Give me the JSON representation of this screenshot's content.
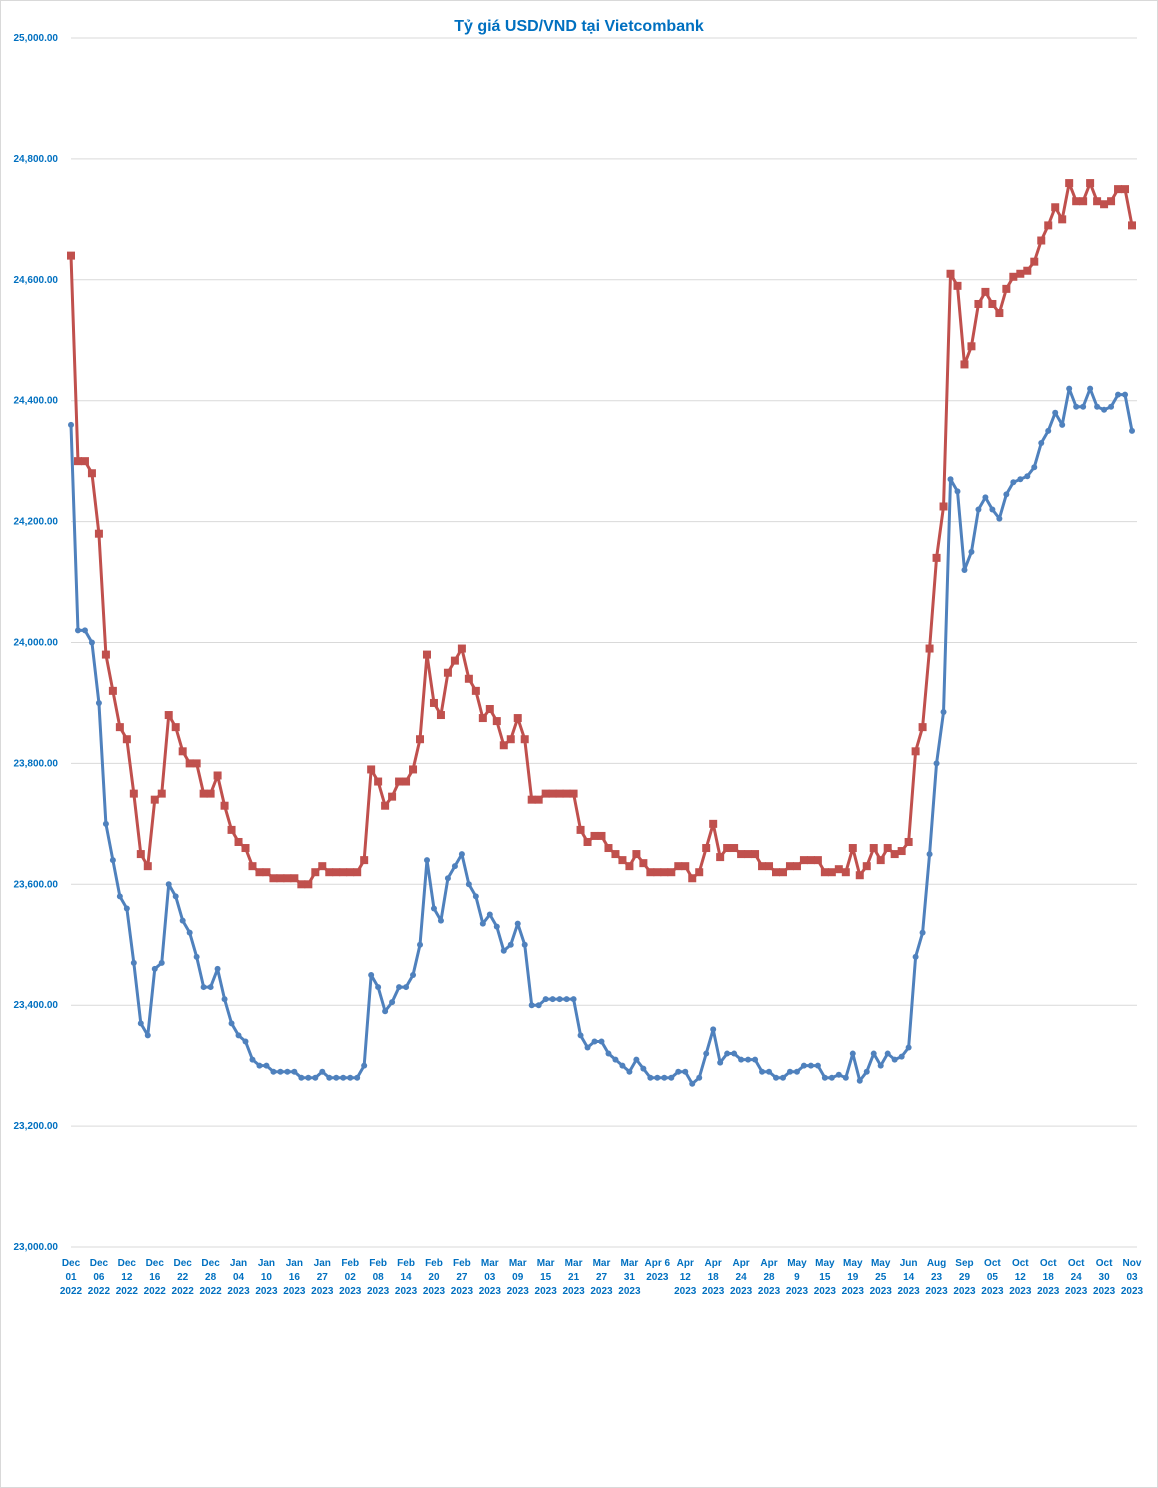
{
  "chart_data": {
    "type": "line",
    "title": "Tỷ giá USD/VND tại Vietcombank",
    "categories": [
      "Dec\n01\n2022",
      null,
      null,
      null,
      "Dec\n06\n2022",
      null,
      null,
      null,
      "Dec\n12\n2022",
      null,
      null,
      null,
      "Dec\n16\n2022",
      null,
      null,
      null,
      "Dec\n22\n2022",
      null,
      null,
      null,
      "Dec\n28\n2022",
      null,
      null,
      null,
      "Jan\n04\n2023",
      null,
      null,
      null,
      "Jan\n10\n2023",
      null,
      null,
      null,
      "Jan\n16\n2023",
      null,
      null,
      null,
      "Jan\n27\n2023",
      null,
      null,
      null,
      "Feb\n02\n2023",
      null,
      null,
      null,
      "Feb\n08\n2023",
      null,
      null,
      null,
      "Feb\n14\n2023",
      null,
      null,
      null,
      "Feb\n20\n2023",
      null,
      null,
      null,
      "Feb\n27\n2023",
      null,
      null,
      null,
      "Mar\n03\n2023",
      null,
      null,
      null,
      "Mar\n09\n2023",
      null,
      null,
      null,
      "Mar\n15\n2023",
      null,
      null,
      null,
      "Mar\n21\n2023",
      null,
      null,
      null,
      "Mar\n27\n2023",
      null,
      null,
      null,
      "Mar\n31\n2023",
      null,
      null,
      null,
      "Apr 6\n2023",
      null,
      null,
      null,
      "Apr\n12\n2023",
      null,
      null,
      null,
      "Apr\n18\n2023",
      null,
      null,
      null,
      "Apr\n24\n2023",
      null,
      null,
      null,
      "Apr\n28\n2023",
      null,
      null,
      null,
      "May\n9\n2023",
      null,
      null,
      null,
      "May\n15\n2023",
      null,
      null,
      null,
      "May\n19\n2023",
      null,
      null,
      null,
      "May\n25\n2023",
      null,
      null,
      null,
      "Jun\n14\n2023",
      null,
      null,
      null,
      "Aug\n23\n2023",
      null,
      null,
      null,
      "Sep\n29\n2023",
      null,
      null,
      null,
      "Oct\n05\n2023",
      null,
      null,
      null,
      "Oct\n12\n2023",
      null,
      null,
      null,
      "Oct\n18\n2023",
      null,
      null,
      null,
      "Oct\n24\n2023",
      null,
      null,
      null,
      "Oct\n30\n2023",
      null,
      null,
      null,
      "Nov\n03\n2023"
    ],
    "series": [
      {
        "color": "#c0504d",
        "marker": "square",
        "values": [
          24640,
          24300,
          24300,
          24280,
          24180,
          23980,
          23920,
          23860,
          23840,
          23750,
          23650,
          23630,
          23740,
          23750,
          23880,
          23860,
          23820,
          23800,
          23800,
          23750,
          23750,
          23780,
          23730,
          23690,
          23670,
          23660,
          23630,
          23620,
          23620,
          23610,
          23610,
          23610,
          23610,
          23600,
          23600,
          23620,
          23630,
          23620,
          23620,
          23620,
          23620,
          23620,
          23640,
          23790,
          23770,
          23730,
          23745,
          23770,
          23770,
          23790,
          23840,
          23980,
          23900,
          23880,
          23950,
          23970,
          23990,
          23940,
          23920,
          23875,
          23890,
          23870,
          23830,
          23840,
          23875,
          23840,
          23740,
          23740,
          23750,
          23750,
          23750,
          23750,
          23750,
          23690,
          23670,
          23680,
          23680,
          23660,
          23650,
          23640,
          23630,
          23650,
          23635,
          23620,
          23620,
          23620,
          23620,
          23630,
          23630,
          23610,
          23620,
          23660,
          23700,
          23645,
          23660,
          23660,
          23650,
          23650,
          23650,
          23630,
          23630,
          23620,
          23620,
          23630,
          23630,
          23640,
          23640,
          23640,
          23620,
          23620,
          23625,
          23620,
          23660,
          23615,
          23630,
          23660,
          23640,
          23660,
          23650,
          23655,
          23670,
          23820,
          23860,
          23990,
          24140,
          24225,
          24610,
          24590,
          24460,
          24490,
          24560,
          24580,
          24560,
          24545,
          24585,
          24605,
          24610,
          24615,
          24630,
          24665,
          24690,
          24720,
          24700,
          24760,
          24730,
          24730,
          24760,
          24730,
          24725,
          24730,
          24750,
          24750,
          24690
        ]
      },
      {
        "color": "#4f81bd",
        "marker": "circle",
        "values": [
          24360,
          24020,
          24020,
          24000,
          23900,
          23700,
          23640,
          23580,
          23560,
          23470,
          23370,
          23350,
          23460,
          23470,
          23600,
          23580,
          23540,
          23520,
          23480,
          23430,
          23430,
          23460,
          23410,
          23370,
          23350,
          23340,
          23310,
          23300,
          23300,
          23290,
          23290,
          23290,
          23290,
          23280,
          23280,
          23280,
          23290,
          23280,
          23280,
          23280,
          23280,
          23280,
          23300,
          23450,
          23430,
          23390,
          23405,
          23430,
          23430,
          23450,
          23500,
          23640,
          23560,
          23540,
          23610,
          23630,
          23650,
          23600,
          23580,
          23535,
          23550,
          23530,
          23490,
          23500,
          23535,
          23500,
          23400,
          23400,
          23410,
          23410,
          23410,
          23410,
          23410,
          23350,
          23330,
          23340,
          23340,
          23320,
          23310,
          23300,
          23290,
          23310,
          23295,
          23280,
          23280,
          23280,
          23280,
          23290,
          23290,
          23270,
          23280,
          23320,
          23360,
          23305,
          23320,
          23320,
          23310,
          23310,
          23310,
          23290,
          23290,
          23280,
          23280,
          23290,
          23290,
          23300,
          23300,
          23300,
          23280,
          23280,
          23285,
          23280,
          23320,
          23275,
          23290,
          23320,
          23300,
          23320,
          23310,
          23315,
          23330,
          23480,
          23520,
          23650,
          23800,
          23885,
          24270,
          24250,
          24120,
          24150,
          24220,
          24240,
          24220,
          24205,
          24245,
          24265,
          24270,
          24275,
          24290,
          24330,
          24350,
          24380,
          24360,
          24420,
          24390,
          24390,
          24420,
          24390,
          24385,
          24390,
          24410,
          24410,
          24350
        ]
      }
    ],
    "ylim": [
      23000,
      25000
    ],
    "yticks": [
      {
        "value": 23000,
        "label": "23,000.00"
      },
      {
        "value": 23200,
        "label": "23,200.00"
      },
      {
        "value": 23400,
        "label": "23,400.00"
      },
      {
        "value": 23600,
        "label": "23,600.00"
      },
      {
        "value": 23800,
        "label": "23,800.00"
      },
      {
        "value": 24000,
        "label": "24,000.00"
      },
      {
        "value": 24200,
        "label": "24,200.00"
      },
      {
        "value": 24400,
        "label": "24,400.00"
      },
      {
        "value": 24600,
        "label": "24,600.00"
      },
      {
        "value": 24800,
        "label": "24,800.00"
      },
      {
        "value": 25000,
        "label": "25,000.00"
      }
    ],
    "grid": true
  }
}
